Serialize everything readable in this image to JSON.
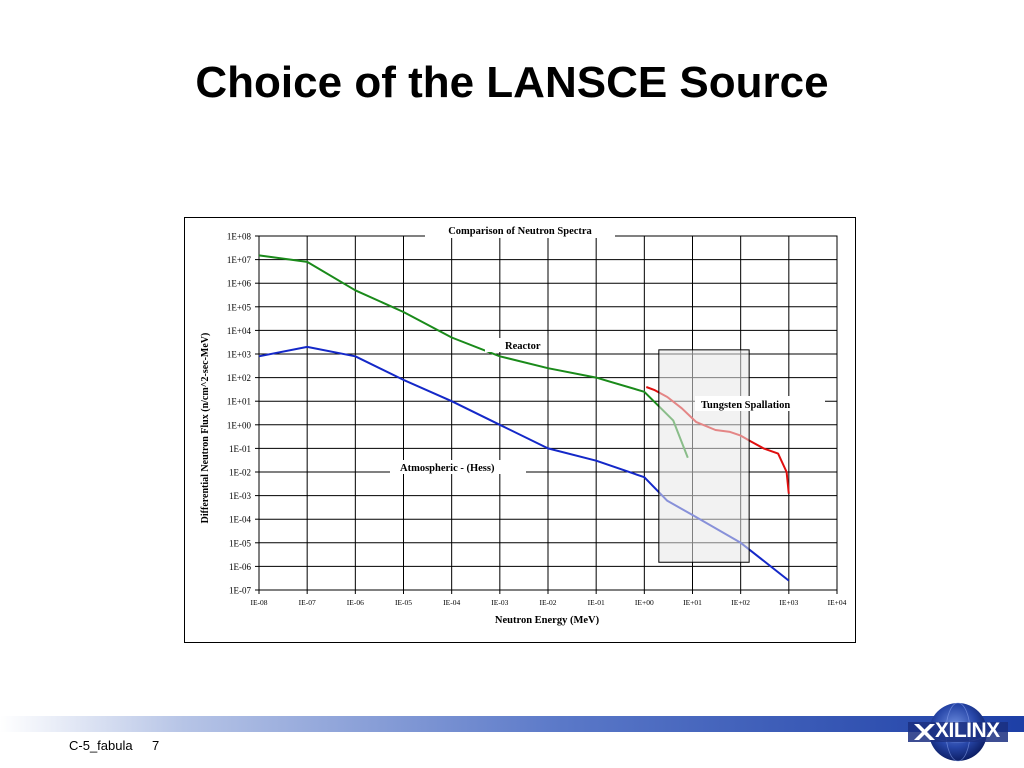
{
  "slide": {
    "title": "Choice of the LANSCE Source",
    "footer_text": "C-5_fabula",
    "page_number": "7",
    "logo_text": "XILINX"
  },
  "chart_data": {
    "type": "line",
    "title": "Comparison of Neutron Spectra",
    "xlabel": "Neutron Energy (MeV)",
    "ylabel": "Differential Neutron Flux (n/cm^2-sec-MeV)",
    "x_scale": "log",
    "y_scale": "log",
    "xlim": [
      1e-08,
      10000.0
    ],
    "ylim": [
      1e-07,
      100000000.0
    ],
    "x_ticks": [
      "IE-08",
      "IE-07",
      "IE-06",
      "IE-05",
      "IE-04",
      "IE-03",
      "IE-02",
      "IE-01",
      "IE+00",
      "IE+01",
      "IE+02",
      "IE+03",
      "IE+04"
    ],
    "y_ticks": [
      "1E+08",
      "1E+07",
      "1E+06",
      "1E+05",
      "1E+04",
      "1E+03",
      "1E+02",
      "1E+01",
      "1E+00",
      "1E-01",
      "1E-02",
      "1E-03",
      "1E-04",
      "1E-05",
      "1E-06",
      "1E-07"
    ],
    "grid": true,
    "series": [
      {
        "name": "Reactor",
        "color": "#1a8a1a",
        "x": [
          1e-08,
          1e-07,
          1e-06,
          1e-05,
          0.0001,
          0.001,
          0.01,
          0.1,
          1,
          4,
          8
        ],
        "y": [
          15000000.0,
          8000000.0,
          500000.0,
          60000.0,
          5000.0,
          800,
          250,
          100,
          25,
          1.5,
          0.04
        ]
      },
      {
        "name": "Atmospheric - (Hess)",
        "color": "#1428c8",
        "x": [
          1e-08,
          1e-07,
          1e-06,
          1e-05,
          0.0001,
          0.001,
          0.01,
          0.1,
          1,
          3,
          10,
          100,
          1000
        ],
        "y": [
          800,
          2000,
          800,
          80,
          10,
          1,
          0.1,
          0.03,
          0.006,
          0.0006,
          0.00015,
          1e-05,
          2.5e-07
        ]
      },
      {
        "name": "Tungsten Spallation",
        "color": "#e01010",
        "x": [
          1.1,
          1.6,
          3,
          6,
          12,
          30,
          60,
          100,
          160,
          300,
          600,
          900,
          1000
        ],
        "y": [
          40,
          30,
          15,
          5,
          1.3,
          0.6,
          0.5,
          0.35,
          0.2,
          0.1,
          0.06,
          0.01,
          0.0012
        ]
      }
    ],
    "annotations": [
      {
        "text": "Reactor"
      },
      {
        "text": "Atmospheric - (Hess)"
      },
      {
        "text": "Tungsten Spallation"
      }
    ],
    "highlight_region": {
      "x": [
        2,
        150
      ],
      "y": [
        1.5e-06,
        1500.0
      ]
    }
  }
}
